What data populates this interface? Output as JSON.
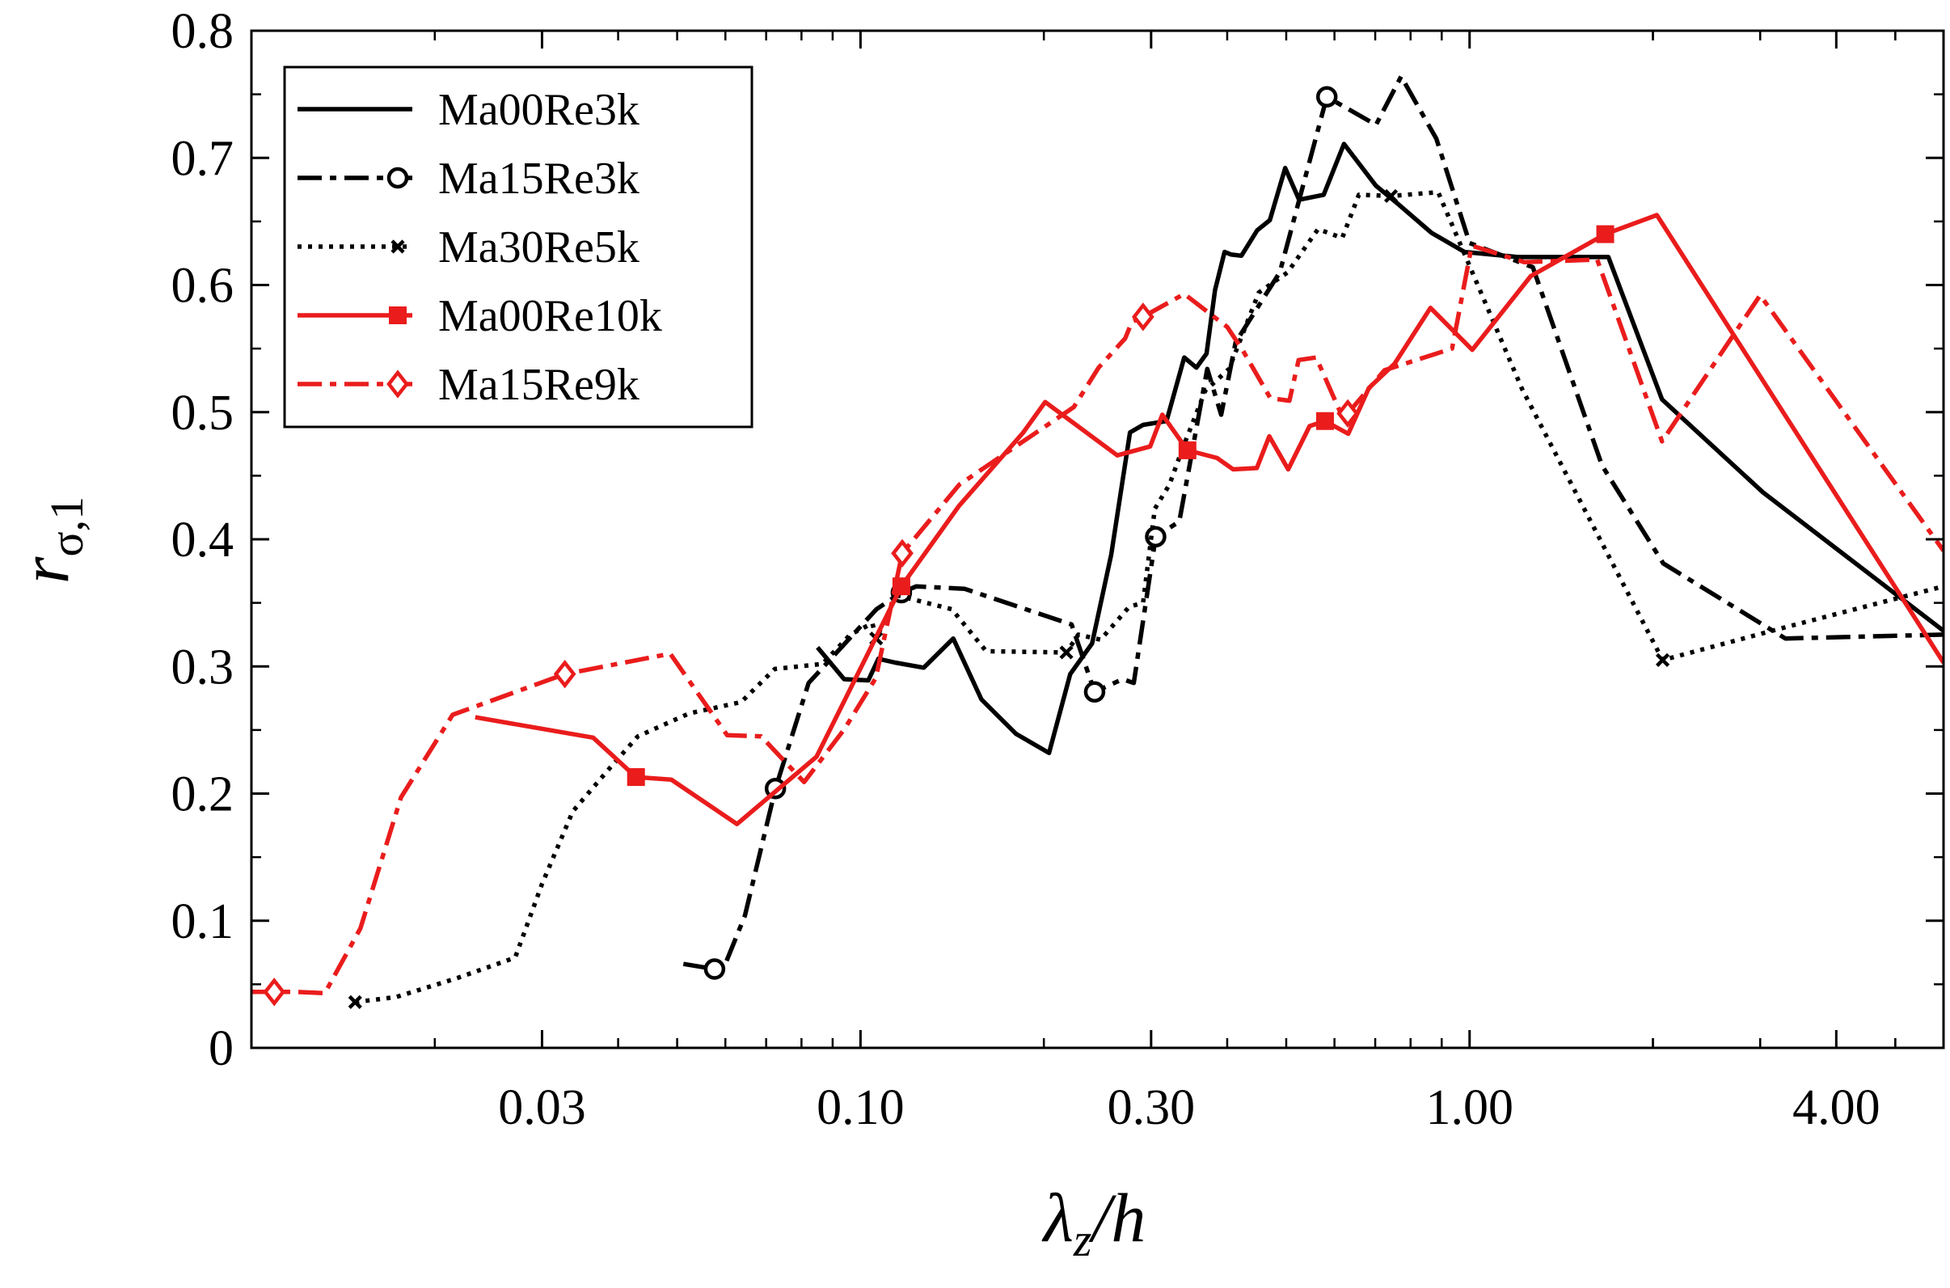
{
  "chart_data": {
    "type": "line",
    "title": "",
    "xlabel": "λz/h",
    "ylabel": "rσ,1",
    "xscale": "log",
    "xlim": [
      0.01,
      6.0
    ],
    "ylim": [
      0,
      0.8
    ],
    "grid": false,
    "legend_position": "top-left",
    "x_ticks": [
      {
        "value": 0.03,
        "label": "0.03"
      },
      {
        "value": 0.1,
        "label": "0.10"
      },
      {
        "value": 0.3,
        "label": "0.30"
      },
      {
        "value": 1.0,
        "label": "1.00"
      },
      {
        "value": 4.0,
        "label": "4.00"
      }
    ],
    "y_ticks": [
      {
        "value": 0,
        "label": "0"
      },
      {
        "value": 0.1,
        "label": "0.1"
      },
      {
        "value": 0.2,
        "label": "0.2"
      },
      {
        "value": 0.3,
        "label": "0.3"
      },
      {
        "value": 0.4,
        "label": "0.4"
      },
      {
        "value": 0.5,
        "label": "0.5"
      },
      {
        "value": 0.6,
        "label": "0.6"
      },
      {
        "value": 0.7,
        "label": "0.7"
      },
      {
        "value": 0.8,
        "label": "0.8"
      }
    ],
    "series": [
      {
        "name": "Ma00Re3k",
        "color": "#000000",
        "style": "solid",
        "marker": "none",
        "x": [
          0.085,
          0.094,
          0.103,
          0.107,
          0.114,
          0.127,
          0.142,
          0.158,
          0.18,
          0.204,
          0.221,
          0.24,
          0.258,
          0.277,
          0.291,
          0.318,
          0.34,
          0.356,
          0.37,
          0.382,
          0.396,
          0.406,
          0.422,
          0.448,
          0.47,
          0.498,
          0.525,
          0.576,
          0.622,
          0.702,
          0.762,
          0.866,
          0.981,
          1.2,
          1.69,
          2.07,
          3.03,
          6.0
        ],
        "y": [
          0.315,
          0.29,
          0.289,
          0.306,
          0.303,
          0.299,
          0.322,
          0.274,
          0.247,
          0.232,
          0.294,
          0.318,
          0.388,
          0.484,
          0.49,
          0.493,
          0.543,
          0.535,
          0.546,
          0.596,
          0.626,
          0.624,
          0.623,
          0.643,
          0.651,
          0.692,
          0.667,
          0.671,
          0.711,
          0.678,
          0.664,
          0.641,
          0.626,
          0.622,
          0.622,
          0.51,
          0.437,
          0.328
        ]
      },
      {
        "name": "Ma15Re3k",
        "color": "#000000",
        "style": "dashdot",
        "marker": "circle",
        "markers_at": [
          1,
          4,
          7,
          11,
          14,
          20
        ],
        "x": [
          0.0512,
          0.0576,
          0.06,
          0.0646,
          0.0725,
          0.0822,
          0.1062,
          0.1167,
          0.1235,
          0.1483,
          0.2221,
          0.2423,
          0.2694,
          0.281,
          0.3052,
          0.3337,
          0.371,
          0.391,
          0.413,
          0.488,
          0.583,
          0.702,
          0.772,
          0.882,
          1.0,
          1.27,
          1.65,
          2.08,
          3.3,
          6.0
        ],
        "y": [
          0.066,
          0.062,
          0.066,
          0.104,
          0.204,
          0.287,
          0.345,
          0.358,
          0.363,
          0.361,
          0.333,
          0.28,
          0.29,
          0.287,
          0.402,
          0.414,
          0.534,
          0.498,
          0.555,
          0.61,
          0.748,
          0.726,
          0.764,
          0.715,
          0.633,
          0.614,
          0.458,
          0.381,
          0.322,
          0.325
        ]
      },
      {
        "name": "Ma30Re5k",
        "color": "#000000",
        "style": "dotted",
        "marker": "cross",
        "markers_at": [
          0,
          14,
          18,
          33,
          36
        ],
        "x": [
          0.0148,
          0.0173,
          0.0218,
          0.0271,
          0.03,
          0.0337,
          0.0389,
          0.0431,
          0.0523,
          0.0637,
          0.0723,
          0.0866,
          0.0962,
          0.1046,
          0.1061,
          0.1146,
          0.1412,
          0.1608,
          0.2178,
          0.2278,
          0.2478,
          0.2763,
          0.291,
          0.3042,
          0.3215,
          0.3383,
          0.3683,
          0.4027,
          0.4507,
          0.5027,
          0.5641,
          0.6178,
          0.658,
          0.743,
          0.888,
          1.22,
          2.075,
          3.31,
          6.0
        ],
        "y": [
          0.036,
          0.04,
          0.055,
          0.071,
          0.129,
          0.186,
          0.221,
          0.245,
          0.263,
          0.272,
          0.298,
          0.302,
          0.325,
          0.334,
          0.322,
          0.356,
          0.345,
          0.312,
          0.311,
          0.325,
          0.321,
          0.347,
          0.35,
          0.424,
          0.443,
          0.472,
          0.517,
          0.534,
          0.594,
          0.61,
          0.644,
          0.637,
          0.671,
          0.67,
          0.673,
          0.518,
          0.305,
          0.331,
          0.363
        ]
      },
      {
        "name": "Ma00Re10k",
        "color": "#ea1c1c",
        "style": "solid",
        "marker": "square",
        "markers_at": [
          2,
          6,
          13,
          20,
          27
        ],
        "x": [
          0.0233,
          0.0364,
          0.0428,
          0.0489,
          0.0627,
          0.0847,
          0.1167,
          0.145,
          0.185,
          0.201,
          0.264,
          0.299,
          0.313,
          0.3442,
          0.3848,
          0.4091,
          0.4474,
          0.469,
          0.5038,
          0.5462,
          0.579,
          0.6321,
          0.6833,
          0.7528,
          0.8626,
          1.0104,
          1.26,
          1.67,
          2.03,
          6.0
        ],
        "y": [
          0.26,
          0.244,
          0.213,
          0.211,
          0.176,
          0.229,
          0.363,
          0.426,
          0.484,
          0.508,
          0.466,
          0.473,
          0.498,
          0.47,
          0.464,
          0.455,
          0.456,
          0.481,
          0.455,
          0.489,
          0.493,
          0.483,
          0.519,
          0.538,
          0.582,
          0.549,
          0.607,
          0.64,
          0.655,
          0.303
        ]
      },
      {
        "name": "Ma15Re9k",
        "color": "#ea1c1c",
        "style": "dashdot",
        "marker": "diamond",
        "markers_at": [
          1,
          7,
          14,
          20,
          29
        ],
        "x": [
          0.01,
          0.0109,
          0.0119,
          0.0132,
          0.0151,
          0.0176,
          0.0214,
          0.0327,
          0.0487,
          0.0604,
          0.0687,
          0.0808,
          0.0942,
          0.106,
          0.1171,
          0.1453,
          0.224,
          0.246,
          0.272,
          0.279,
          0.291,
          0.34,
          0.4,
          0.425,
          0.471,
          0.506,
          0.524,
          0.56,
          0.616,
          0.631,
          0.725,
          0.936,
          1.008,
          1.23,
          1.62,
          2.07,
          3.0,
          6.0
        ],
        "y": [
          0.044,
          0.044,
          0.044,
          0.043,
          0.094,
          0.197,
          0.262,
          0.294,
          0.31,
          0.246,
          0.245,
          0.209,
          0.251,
          0.291,
          0.389,
          0.443,
          0.504,
          0.535,
          0.558,
          0.571,
          0.575,
          0.593,
          0.567,
          0.548,
          0.511,
          0.509,
          0.541,
          0.543,
          0.498,
          0.499,
          0.533,
          0.55,
          0.631,
          0.618,
          0.62,
          0.477,
          0.592,
          0.391
        ]
      }
    ]
  }
}
